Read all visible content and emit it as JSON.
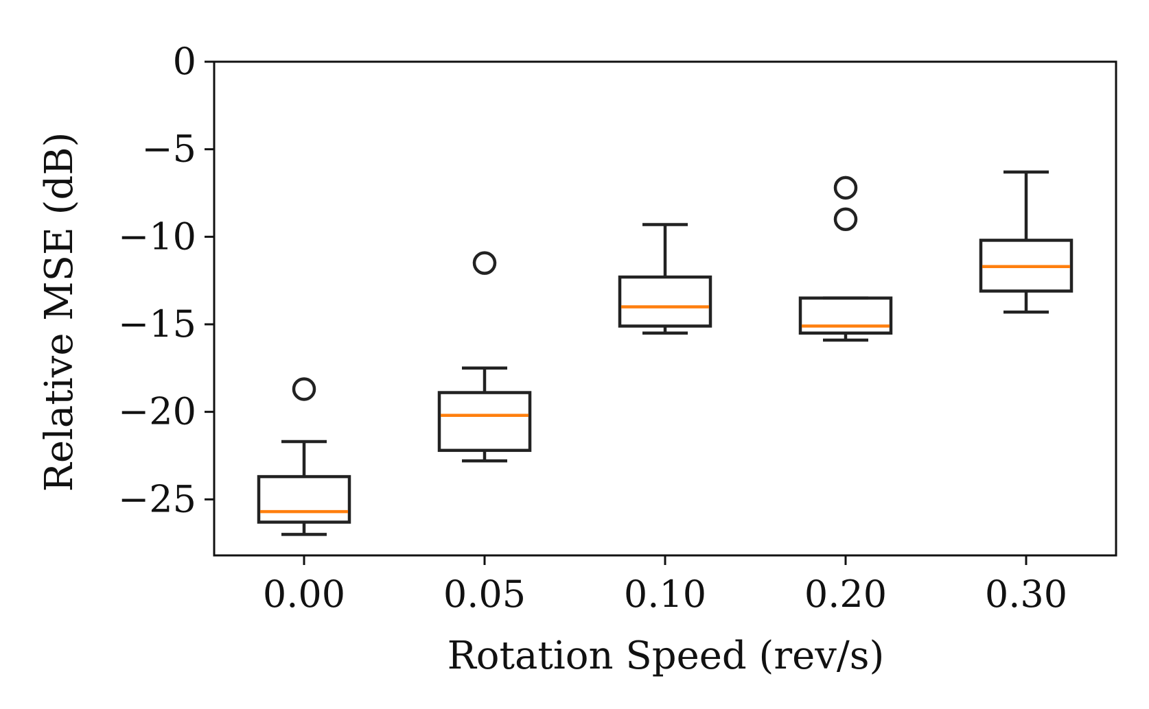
{
  "chart_data": {
    "type": "box",
    "title": "",
    "xlabel": "Rotation Speed (rev/s)",
    "ylabel": "Relative MSE (dB)",
    "ylim": [
      -28.2,
      0
    ],
    "yticks": [
      0,
      -5,
      -10,
      -15,
      -20,
      -25
    ],
    "ytick_labels": [
      "0",
      "−5",
      "−10",
      "−15",
      "−20",
      "−25"
    ],
    "categories": [
      "0.00",
      "0.05",
      "0.10",
      "0.20",
      "0.30"
    ],
    "boxes": [
      {
        "category": "0.00",
        "whisker_low": -27.0,
        "q1": -26.3,
        "median": -25.7,
        "q3": -23.7,
        "whisker_high": -21.7,
        "outliers": [
          -18.7
        ]
      },
      {
        "category": "0.05",
        "whisker_low": -22.8,
        "q1": -22.2,
        "median": -20.2,
        "q3": -18.9,
        "whisker_high": -17.5,
        "outliers": [
          -11.5
        ]
      },
      {
        "category": "0.10",
        "whisker_low": -15.5,
        "q1": -15.1,
        "median": -14.0,
        "q3": -12.3,
        "whisker_high": -9.3,
        "outliers": []
      },
      {
        "category": "0.20",
        "whisker_low": -15.9,
        "q1": -15.5,
        "median": -15.1,
        "q3": -13.5,
        "whisker_high": -13.5,
        "outliers": [
          -9.0,
          -7.2
        ]
      },
      {
        "category": "0.30",
        "whisker_low": -14.3,
        "q1": -13.1,
        "median": -11.7,
        "q3": -10.2,
        "whisker_high": -6.3,
        "outliers": []
      }
    ],
    "colors": {
      "box_edge": "#222222",
      "median": "#ff7f0e",
      "axis": "#111111",
      "background": "#ffffff"
    },
    "grid": false
  }
}
